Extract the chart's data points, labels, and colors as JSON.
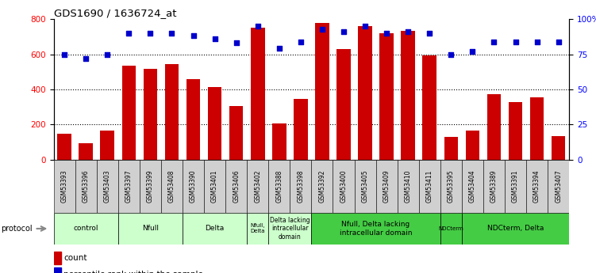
{
  "title": "GDS1690 / 1636724_at",
  "samples": [
    "GSM53393",
    "GSM53396",
    "GSM53403",
    "GSM53397",
    "GSM53399",
    "GSM53408",
    "GSM53390",
    "GSM53401",
    "GSM53406",
    "GSM53402",
    "GSM53388",
    "GSM53398",
    "GSM53392",
    "GSM53400",
    "GSM53405",
    "GSM53409",
    "GSM53410",
    "GSM53411",
    "GSM53395",
    "GSM53404",
    "GSM53389",
    "GSM53391",
    "GSM53394",
    "GSM53407"
  ],
  "counts": [
    150,
    95,
    165,
    535,
    515,
    545,
    460,
    415,
    305,
    750,
    205,
    345,
    780,
    630,
    760,
    720,
    735,
    595,
    130,
    165,
    375,
    330,
    355,
    135
  ],
  "percentiles": [
    75,
    72,
    75,
    90,
    90,
    90,
    88,
    86,
    83,
    95,
    79,
    84,
    93,
    91,
    95,
    90,
    91,
    90,
    75,
    77,
    84,
    84,
    84,
    84
  ],
  "groups": [
    {
      "label": "control",
      "start": 0,
      "end": 3,
      "color": "#ccffcc"
    },
    {
      "label": "Nfull",
      "start": 3,
      "end": 6,
      "color": "#ccffcc"
    },
    {
      "label": "Delta",
      "start": 6,
      "end": 9,
      "color": "#ccffcc"
    },
    {
      "label": "Nfull,\nDelta",
      "start": 9,
      "end": 10,
      "color": "#ccffcc"
    },
    {
      "label": "Delta lacking\nintracellular\ndomain",
      "start": 10,
      "end": 12,
      "color": "#ccffcc"
    },
    {
      "label": "Nfull, Delta lacking\nintracellular domain",
      "start": 12,
      "end": 18,
      "color": "#44cc44"
    },
    {
      "label": "NDCterm",
      "start": 18,
      "end": 19,
      "color": "#44cc44"
    },
    {
      "label": "NDCterm, Delta",
      "start": 19,
      "end": 24,
      "color": "#44cc44"
    }
  ],
  "bar_color": "#cc0000",
  "dot_color": "#0000cc",
  "ylim_left": [
    0,
    800
  ],
  "ylim_right": [
    0,
    100
  ],
  "yticks_left": [
    0,
    200,
    400,
    600,
    800
  ],
  "yticks_right": [
    0,
    25,
    50,
    75,
    100
  ],
  "ytick_labels_right": [
    "0",
    "25",
    "50",
    "75",
    "100%"
  ],
  "grid_lines": [
    200,
    400,
    600
  ],
  "bg_color": "#ffffff"
}
